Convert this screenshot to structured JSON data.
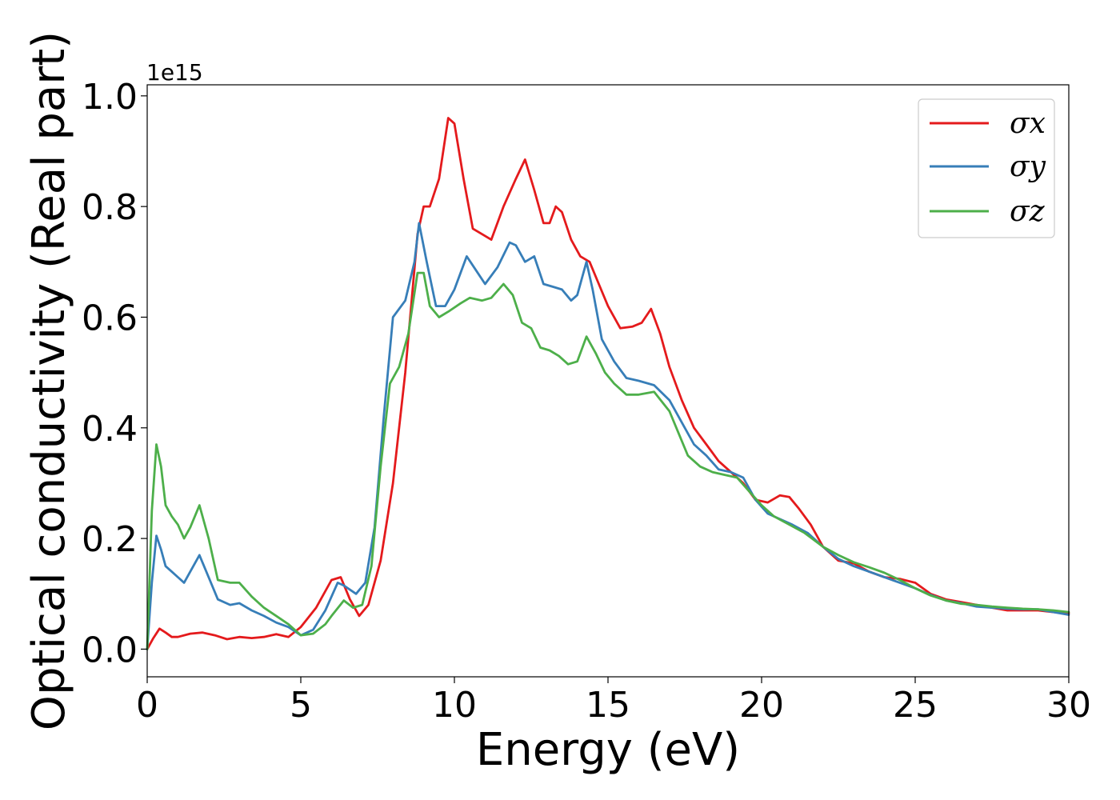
{
  "chart_data": {
    "type": "line",
    "xlabel": "Energy (eV)",
    "ylabel": "Optical conductivity (Real part)",
    "y_offset_label": "1e15",
    "xlim": [
      0,
      30
    ],
    "ylim": [
      -0.05,
      1.02
    ],
    "xticks": [
      0,
      5,
      10,
      15,
      20,
      25,
      30
    ],
    "xtick_labels": [
      "0",
      "5",
      "10",
      "15",
      "20",
      "25",
      "30"
    ],
    "yticks": [
      0.0,
      0.2,
      0.4,
      0.6,
      0.8,
      1.0
    ],
    "ytick_labels": [
      "0.0",
      "0.2",
      "0.4",
      "0.6",
      "0.8",
      "1.0"
    ],
    "grid": false,
    "legend_position": "top-right",
    "series": [
      {
        "name": "σx",
        "color": "#e41a1c",
        "points": [
          [
            0,
            0.0
          ],
          [
            0.2,
            0.02
          ],
          [
            0.4,
            0.037
          ],
          [
            0.6,
            0.03
          ],
          [
            0.8,
            0.022
          ],
          [
            1.0,
            0.022
          ],
          [
            1.4,
            0.028
          ],
          [
            1.8,
            0.03
          ],
          [
            2.2,
            0.025
          ],
          [
            2.6,
            0.018
          ],
          [
            3.0,
            0.022
          ],
          [
            3.4,
            0.02
          ],
          [
            3.8,
            0.022
          ],
          [
            4.2,
            0.027
          ],
          [
            4.6,
            0.022
          ],
          [
            5.0,
            0.04
          ],
          [
            5.5,
            0.075
          ],
          [
            6.0,
            0.125
          ],
          [
            6.3,
            0.13
          ],
          [
            6.6,
            0.09
          ],
          [
            6.9,
            0.06
          ],
          [
            7.2,
            0.08
          ],
          [
            7.6,
            0.16
          ],
          [
            8.0,
            0.3
          ],
          [
            8.4,
            0.5
          ],
          [
            8.8,
            0.75
          ],
          [
            9.0,
            0.8
          ],
          [
            9.2,
            0.8
          ],
          [
            9.5,
            0.85
          ],
          [
            9.8,
            0.96
          ],
          [
            10.0,
            0.95
          ],
          [
            10.3,
            0.85
          ],
          [
            10.6,
            0.76
          ],
          [
            10.9,
            0.75
          ],
          [
            11.2,
            0.74
          ],
          [
            11.6,
            0.8
          ],
          [
            12.0,
            0.85
          ],
          [
            12.3,
            0.885
          ],
          [
            12.6,
            0.83
          ],
          [
            12.9,
            0.77
          ],
          [
            13.1,
            0.77
          ],
          [
            13.3,
            0.8
          ],
          [
            13.5,
            0.79
          ],
          [
            13.8,
            0.74
          ],
          [
            14.1,
            0.71
          ],
          [
            14.4,
            0.7
          ],
          [
            14.7,
            0.66
          ],
          [
            15.0,
            0.62
          ],
          [
            15.4,
            0.58
          ],
          [
            15.8,
            0.583
          ],
          [
            16.1,
            0.59
          ],
          [
            16.4,
            0.615
          ],
          [
            16.7,
            0.57
          ],
          [
            17.0,
            0.51
          ],
          [
            17.4,
            0.45
          ],
          [
            17.8,
            0.4
          ],
          [
            18.2,
            0.37
          ],
          [
            18.6,
            0.34
          ],
          [
            19.0,
            0.32
          ],
          [
            19.4,
            0.3
          ],
          [
            19.8,
            0.27
          ],
          [
            20.2,
            0.265
          ],
          [
            20.6,
            0.278
          ],
          [
            20.9,
            0.275
          ],
          [
            21.2,
            0.255
          ],
          [
            21.6,
            0.225
          ],
          [
            22.0,
            0.185
          ],
          [
            22.5,
            0.16
          ],
          [
            23.0,
            0.155
          ],
          [
            23.5,
            0.14
          ],
          [
            24.0,
            0.13
          ],
          [
            24.5,
            0.127
          ],
          [
            25.0,
            0.12
          ],
          [
            25.5,
            0.1
          ],
          [
            26.0,
            0.09
          ],
          [
            26.5,
            0.085
          ],
          [
            27.0,
            0.08
          ],
          [
            27.5,
            0.075
          ],
          [
            28.0,
            0.07
          ],
          [
            28.5,
            0.07
          ],
          [
            29.0,
            0.07
          ],
          [
            29.5,
            0.067
          ],
          [
            30.0,
            0.065
          ]
        ]
      },
      {
        "name": "σy",
        "color": "#377eb8",
        "points": [
          [
            0,
            0.0
          ],
          [
            0.15,
            0.12
          ],
          [
            0.3,
            0.205
          ],
          [
            0.45,
            0.18
          ],
          [
            0.6,
            0.15
          ],
          [
            0.8,
            0.14
          ],
          [
            1.0,
            0.13
          ],
          [
            1.2,
            0.12
          ],
          [
            1.4,
            0.14
          ],
          [
            1.7,
            0.17
          ],
          [
            2.0,
            0.13
          ],
          [
            2.3,
            0.09
          ],
          [
            2.7,
            0.08
          ],
          [
            3.0,
            0.083
          ],
          [
            3.4,
            0.07
          ],
          [
            3.8,
            0.06
          ],
          [
            4.2,
            0.048
          ],
          [
            4.6,
            0.04
          ],
          [
            5.0,
            0.025
          ],
          [
            5.4,
            0.035
          ],
          [
            5.8,
            0.07
          ],
          [
            6.2,
            0.12
          ],
          [
            6.4,
            0.115
          ],
          [
            6.8,
            0.1
          ],
          [
            7.1,
            0.12
          ],
          [
            7.4,
            0.22
          ],
          [
            7.7,
            0.42
          ],
          [
            8.0,
            0.6
          ],
          [
            8.4,
            0.63
          ],
          [
            8.7,
            0.7
          ],
          [
            8.85,
            0.77
          ],
          [
            9.1,
            0.7
          ],
          [
            9.4,
            0.62
          ],
          [
            9.7,
            0.62
          ],
          [
            10.0,
            0.65
          ],
          [
            10.4,
            0.71
          ],
          [
            10.7,
            0.685
          ],
          [
            11.0,
            0.66
          ],
          [
            11.4,
            0.69
          ],
          [
            11.8,
            0.735
          ],
          [
            12.0,
            0.73
          ],
          [
            12.3,
            0.7
          ],
          [
            12.6,
            0.71
          ],
          [
            12.9,
            0.66
          ],
          [
            13.2,
            0.655
          ],
          [
            13.5,
            0.65
          ],
          [
            13.8,
            0.63
          ],
          [
            14.0,
            0.64
          ],
          [
            14.3,
            0.7
          ],
          [
            14.5,
            0.65
          ],
          [
            14.8,
            0.56
          ],
          [
            15.2,
            0.52
          ],
          [
            15.6,
            0.49
          ],
          [
            16.0,
            0.485
          ],
          [
            16.5,
            0.477
          ],
          [
            17.0,
            0.45
          ],
          [
            17.5,
            0.4
          ],
          [
            17.8,
            0.37
          ],
          [
            18.2,
            0.35
          ],
          [
            18.6,
            0.325
          ],
          [
            19.0,
            0.32
          ],
          [
            19.4,
            0.31
          ],
          [
            19.8,
            0.27
          ],
          [
            20.2,
            0.245
          ],
          [
            20.6,
            0.235
          ],
          [
            21.0,
            0.225
          ],
          [
            21.5,
            0.21
          ],
          [
            22.0,
            0.185
          ],
          [
            22.5,
            0.163
          ],
          [
            23.0,
            0.15
          ],
          [
            23.5,
            0.14
          ],
          [
            24.0,
            0.13
          ],
          [
            24.5,
            0.12
          ],
          [
            25.0,
            0.11
          ],
          [
            25.5,
            0.098
          ],
          [
            26.0,
            0.088
          ],
          [
            26.5,
            0.083
          ],
          [
            27.0,
            0.077
          ],
          [
            27.5,
            0.075
          ],
          [
            28.0,
            0.073
          ],
          [
            28.5,
            0.072
          ],
          [
            29.0,
            0.072
          ],
          [
            29.5,
            0.067
          ],
          [
            30.0,
            0.062
          ]
        ]
      },
      {
        "name": "σz",
        "color": "#4daf4a",
        "points": [
          [
            0,
            0.0
          ],
          [
            0.15,
            0.25
          ],
          [
            0.3,
            0.37
          ],
          [
            0.45,
            0.33
          ],
          [
            0.6,
            0.26
          ],
          [
            0.8,
            0.24
          ],
          [
            1.0,
            0.225
          ],
          [
            1.2,
            0.2
          ],
          [
            1.4,
            0.22
          ],
          [
            1.7,
            0.26
          ],
          [
            2.0,
            0.2
          ],
          [
            2.3,
            0.125
          ],
          [
            2.7,
            0.12
          ],
          [
            3.0,
            0.12
          ],
          [
            3.4,
            0.095
          ],
          [
            3.8,
            0.075
          ],
          [
            4.2,
            0.06
          ],
          [
            4.6,
            0.045
          ],
          [
            5.0,
            0.025
          ],
          [
            5.4,
            0.028
          ],
          [
            5.8,
            0.045
          ],
          [
            6.0,
            0.06
          ],
          [
            6.4,
            0.088
          ],
          [
            6.7,
            0.075
          ],
          [
            7.0,
            0.08
          ],
          [
            7.3,
            0.15
          ],
          [
            7.6,
            0.33
          ],
          [
            7.9,
            0.48
          ],
          [
            8.2,
            0.51
          ],
          [
            8.5,
            0.57
          ],
          [
            8.8,
            0.68
          ],
          [
            9.0,
            0.68
          ],
          [
            9.2,
            0.62
          ],
          [
            9.5,
            0.6
          ],
          [
            9.8,
            0.61
          ],
          [
            10.2,
            0.625
          ],
          [
            10.5,
            0.635
          ],
          [
            10.9,
            0.63
          ],
          [
            11.2,
            0.635
          ],
          [
            11.6,
            0.66
          ],
          [
            11.9,
            0.64
          ],
          [
            12.2,
            0.59
          ],
          [
            12.5,
            0.58
          ],
          [
            12.8,
            0.545
          ],
          [
            13.1,
            0.54
          ],
          [
            13.4,
            0.53
          ],
          [
            13.7,
            0.515
          ],
          [
            14.0,
            0.52
          ],
          [
            14.3,
            0.565
          ],
          [
            14.6,
            0.535
          ],
          [
            14.9,
            0.5
          ],
          [
            15.2,
            0.48
          ],
          [
            15.6,
            0.46
          ],
          [
            16.0,
            0.46
          ],
          [
            16.5,
            0.465
          ],
          [
            17.0,
            0.43
          ],
          [
            17.3,
            0.39
          ],
          [
            17.6,
            0.35
          ],
          [
            18.0,
            0.33
          ],
          [
            18.4,
            0.32
          ],
          [
            18.8,
            0.315
          ],
          [
            19.2,
            0.31
          ],
          [
            19.6,
            0.285
          ],
          [
            20.0,
            0.26
          ],
          [
            20.4,
            0.24
          ],
          [
            20.8,
            0.228
          ],
          [
            21.4,
            0.21
          ],
          [
            22.0,
            0.185
          ],
          [
            22.5,
            0.17
          ],
          [
            23.0,
            0.157
          ],
          [
            23.5,
            0.148
          ],
          [
            24.0,
            0.138
          ],
          [
            24.5,
            0.125
          ],
          [
            25.0,
            0.11
          ],
          [
            25.5,
            0.097
          ],
          [
            26.0,
            0.088
          ],
          [
            26.5,
            0.082
          ],
          [
            27.0,
            0.08
          ],
          [
            27.5,
            0.077
          ],
          [
            28.0,
            0.075
          ],
          [
            28.5,
            0.073
          ],
          [
            29.0,
            0.072
          ],
          [
            29.5,
            0.07
          ],
          [
            30.0,
            0.067
          ]
        ]
      }
    ]
  }
}
